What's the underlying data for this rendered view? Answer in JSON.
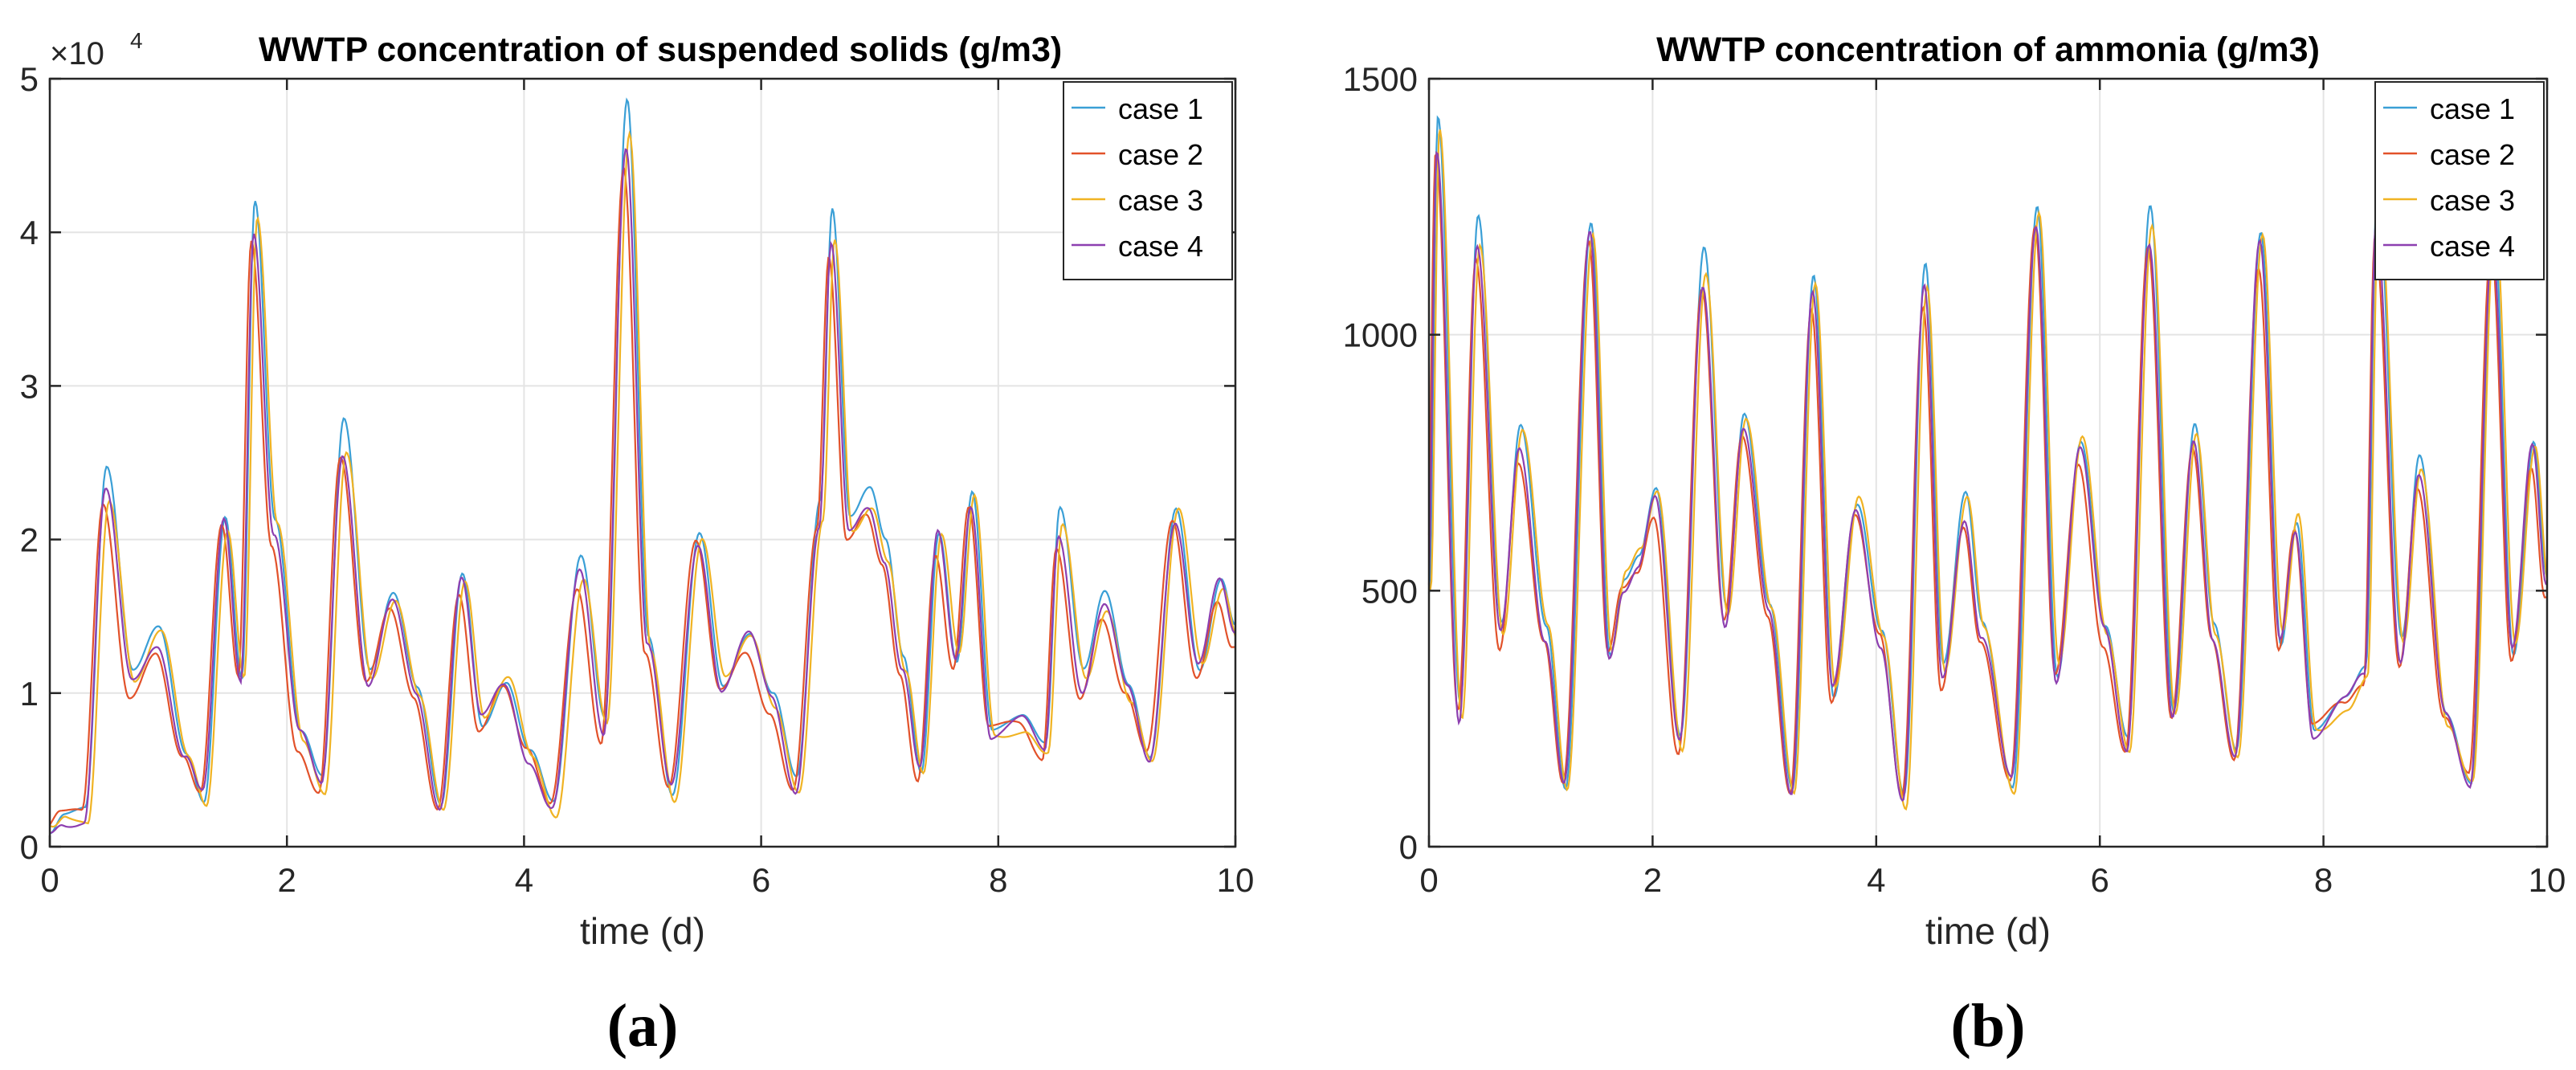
{
  "chart_data": [
    {
      "type": "line",
      "title": "WWTP concentration of suspended solids (g/m3)",
      "multiplier": "×10",
      "multiplier_exp": "4",
      "xlabel": "time (d)",
      "ylabel": "",
      "xlim": [
        0,
        10
      ],
      "ylim": [
        0,
        5
      ],
      "x_ticks": [
        0,
        2,
        4,
        6,
        8,
        10
      ],
      "y_ticks": [
        0,
        1,
        2,
        3,
        4,
        5
      ],
      "grid": true,
      "legend_position": "top-right",
      "panel_label": "(a)",
      "peaks": [
        [
          0,
          0.08
        ],
        [
          0.12,
          0.18
        ],
        [
          0.3,
          0.2
        ],
        [
          0.48,
          2.3
        ],
        [
          0.7,
          1.05
        ],
        [
          0.92,
          1.35
        ],
        [
          1.15,
          0.6
        ],
        [
          1.3,
          0.32
        ],
        [
          1.48,
          2.1
        ],
        [
          1.62,
          1.1
        ],
        [
          1.73,
          4.05
        ],
        [
          1.9,
          2.05
        ],
        [
          2.12,
          0.7
        ],
        [
          2.3,
          0.4
        ],
        [
          2.48,
          2.6
        ],
        [
          2.7,
          1.05
        ],
        [
          2.9,
          1.55
        ],
        [
          3.1,
          1.0
        ],
        [
          3.3,
          0.3
        ],
        [
          3.48,
          1.75
        ],
        [
          3.65,
          0.8
        ],
        [
          3.85,
          1.05
        ],
        [
          4.05,
          0.6
        ],
        [
          4.25,
          0.25
        ],
        [
          4.48,
          1.75
        ],
        [
          4.68,
          0.75
        ],
        [
          4.87,
          4.6
        ],
        [
          5.05,
          1.3
        ],
        [
          5.25,
          0.35
        ],
        [
          5.48,
          2.0
        ],
        [
          5.68,
          1.05
        ],
        [
          5.9,
          1.35
        ],
        [
          6.1,
          0.95
        ],
        [
          6.3,
          0.4
        ],
        [
          6.5,
          2.1
        ],
        [
          6.6,
          3.9
        ],
        [
          6.75,
          2.0
        ],
        [
          6.92,
          2.2
        ],
        [
          7.05,
          1.9
        ],
        [
          7.2,
          1.2
        ],
        [
          7.35,
          0.5
        ],
        [
          7.5,
          2.0
        ],
        [
          7.65,
          1.2
        ],
        [
          7.78,
          2.25
        ],
        [
          7.95,
          0.75
        ],
        [
          8.2,
          0.8
        ],
        [
          8.4,
          0.6
        ],
        [
          8.52,
          2.05
        ],
        [
          8.72,
          1.05
        ],
        [
          8.9,
          1.55
        ],
        [
          9.1,
          1.0
        ],
        [
          9.28,
          0.58
        ],
        [
          9.5,
          2.15
        ],
        [
          9.7,
          1.15
        ],
        [
          9.88,
          1.7
        ],
        [
          10,
          1.4
        ]
      ],
      "series": [
        {
          "name": "case 1",
          "color": "#3a9fd6",
          "offset": 0,
          "vscale": 1.05
        },
        {
          "name": "case 2",
          "color": "#e2522a",
          "offset": 0.03,
          "vscale": 0.97
        },
        {
          "name": "case 3",
          "color": "#f0b323",
          "offset": -0.02,
          "vscale": 1.0
        },
        {
          "name": "case 4",
          "color": "#8d3fb0",
          "offset": 0.01,
          "vscale": 1.0
        }
      ]
    },
    {
      "type": "line",
      "title": "WWTP concentration of ammonia (g/m3)",
      "xlabel": "time (d)",
      "ylabel": "",
      "xlim": [
        0,
        10
      ],
      "ylim": [
        0,
        1500
      ],
      "x_ticks": [
        0,
        2,
        4,
        6,
        8,
        10
      ],
      "y_ticks": [
        0,
        500,
        1000,
        1500
      ],
      "grid": true,
      "legend_position": "top-right",
      "panel_label": "(b)",
      "peaks": [
        [
          0,
          480
        ],
        [
          0.08,
          1380
        ],
        [
          0.28,
          260
        ],
        [
          0.44,
          1180
        ],
        [
          0.65,
          410
        ],
        [
          0.82,
          790
        ],
        [
          1.05,
          420
        ],
        [
          1.22,
          120
        ],
        [
          1.45,
          1200
        ],
        [
          1.62,
          380
        ],
        [
          1.75,
          520
        ],
        [
          1.88,
          560
        ],
        [
          2.03,
          680
        ],
        [
          2.25,
          200
        ],
        [
          2.46,
          1120
        ],
        [
          2.66,
          440
        ],
        [
          2.82,
          810
        ],
        [
          3.05,
          460
        ],
        [
          3.25,
          120
        ],
        [
          3.44,
          1100
        ],
        [
          3.62,
          300
        ],
        [
          3.83,
          660
        ],
        [
          4.05,
          410
        ],
        [
          4.25,
          90
        ],
        [
          4.44,
          1090
        ],
        [
          4.6,
          330
        ],
        [
          4.8,
          660
        ],
        [
          4.95,
          420
        ],
        [
          5.22,
          120
        ],
        [
          5.44,
          1230
        ],
        [
          5.62,
          340
        ],
        [
          5.83,
          780
        ],
        [
          6.05,
          420
        ],
        [
          6.25,
          200
        ],
        [
          6.45,
          1200
        ],
        [
          6.66,
          240
        ],
        [
          6.85,
          790
        ],
        [
          7.02,
          420
        ],
        [
          7.22,
          190
        ],
        [
          7.44,
          1180
        ],
        [
          7.62,
          400
        ],
        [
          7.76,
          630
        ],
        [
          7.92,
          230
        ],
        [
          8.2,
          280
        ],
        [
          8.38,
          330
        ],
        [
          8.48,
          1240
        ],
        [
          8.7,
          380
        ],
        [
          8.86,
          730
        ],
        [
          9.1,
          250
        ],
        [
          9.32,
          130
        ],
        [
          9.52,
          1200
        ],
        [
          9.7,
          380
        ],
        [
          9.88,
          780
        ],
        [
          10,
          520
        ]
      ],
      "series": [
        {
          "name": "case 1",
          "color": "#3a9fd6",
          "offset": 0,
          "vscale": 1.03
        },
        {
          "name": "case 2",
          "color": "#e2522a",
          "offset": 0.02,
          "vscale": 0.97
        },
        {
          "name": "case 3",
          "color": "#f0b323",
          "offset": -0.015,
          "vscale": 1.01
        },
        {
          "name": "case 4",
          "color": "#8d3fb0",
          "offset": 0.01,
          "vscale": 0.99
        }
      ]
    }
  ]
}
